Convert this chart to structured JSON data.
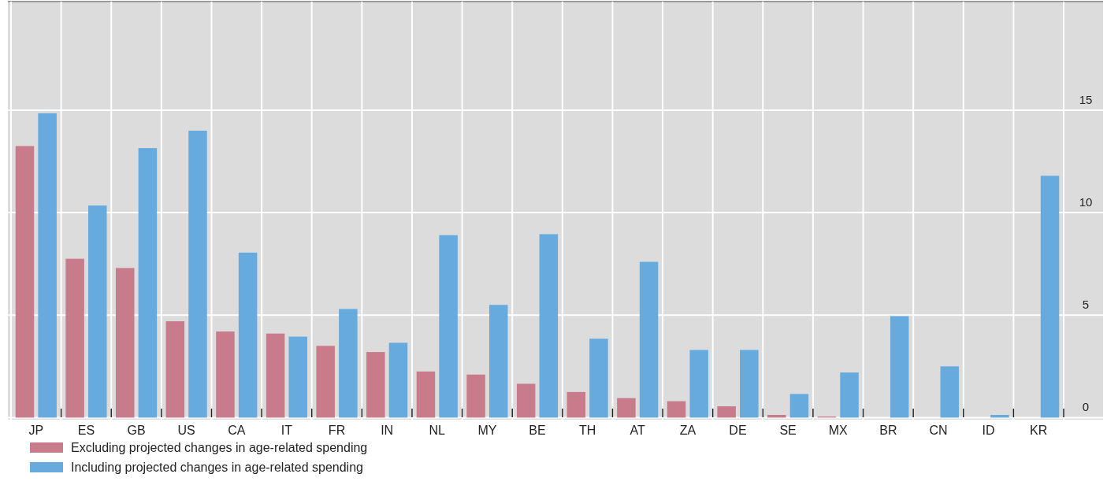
{
  "chart_data": {
    "type": "bar",
    "categories": [
      "JP",
      "ES",
      "GB",
      "US",
      "CA",
      "IT",
      "FR",
      "IN",
      "NL",
      "MY",
      "BE",
      "TH",
      "AT",
      "ZA",
      "DE",
      "SE",
      "MX",
      "BR",
      "CN",
      "ID",
      "KR"
    ],
    "series": [
      {
        "name": "Excluding projected changes in age-related spending",
        "color": "#c87b8b",
        "values": [
          13.25,
          7.75,
          7.3,
          4.7,
          4.2,
          4.1,
          3.5,
          3.2,
          2.25,
          2.1,
          1.65,
          1.25,
          0.95,
          0.8,
          0.55,
          0.13,
          0.05,
          null,
          null,
          null,
          null
        ]
      },
      {
        "name": "Including projected changes in age-related spending",
        "color": "#66aade",
        "values": [
          14.85,
          10.35,
          13.15,
          14.0,
          8.05,
          3.95,
          5.3,
          3.65,
          8.9,
          5.5,
          8.95,
          3.85,
          7.6,
          3.3,
          3.3,
          1.15,
          2.2,
          4.95,
          2.5,
          0.13,
          11.8
        ]
      }
    ],
    "ylim": [
      -0.1,
      20.3
    ],
    "yticks": [
      0,
      5,
      10,
      15
    ],
    "grid": true,
    "legend": "bottom left"
  }
}
